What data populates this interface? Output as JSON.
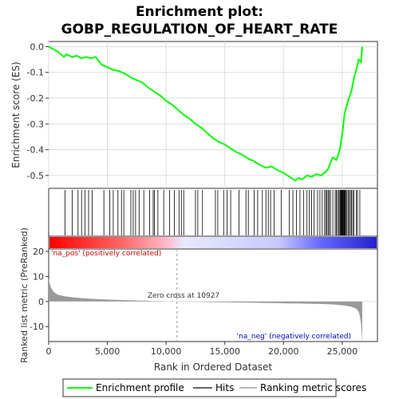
{
  "chart_data": {
    "type": "line",
    "title_line1": "Enrichment plot:",
    "title_line2": "GOBP_REGULATION_OF_HEART_RATE",
    "es_ylabel": "Enrichment score (ES)",
    "rank_ylabel": "Ranked list metric (PreRanked)",
    "xlabel": "Rank in Ordered Dataset",
    "xlim": [
      0,
      28000
    ],
    "es_ylim": [
      -0.55,
      0.02
    ],
    "rank_ylim": [
      -16,
      21
    ],
    "x_ticks": [
      0,
      5000,
      10000,
      15000,
      20000,
      25000
    ],
    "x_tick_labels": [
      "0",
      "5,000",
      "10,000",
      "15,000",
      "20,000",
      "25,000"
    ],
    "es_ticks": [
      0.0,
      -0.1,
      -0.2,
      -0.3,
      -0.4,
      -0.5
    ],
    "es_tick_labels": [
      "0.0",
      "-0.1",
      "-0.2",
      "-0.3",
      "-0.4",
      "-0.5"
    ],
    "rank_ticks": [
      20,
      10,
      0,
      -10
    ],
    "rank_tick_labels": [
      "20",
      "10",
      "0",
      "-10"
    ],
    "zero_cross_rank": 10927,
    "zero_cross_label": "Zero cross at 10927",
    "pos_label": "'na_pos' (positively correlated)",
    "neg_label": "'na_neg' (negatively correlated)",
    "dataset_size": 26700,
    "es_curve": [
      [
        0,
        0.0
      ],
      [
        800,
        -0.02
      ],
      [
        1300,
        -0.04
      ],
      [
        1500,
        -0.03
      ],
      [
        2000,
        -0.04
      ],
      [
        2400,
        -0.035
      ],
      [
        2800,
        -0.045
      ],
      [
        3200,
        -0.04
      ],
      [
        3600,
        -0.045
      ],
      [
        4000,
        -0.04
      ],
      [
        4500,
        -0.07
      ],
      [
        5000,
        -0.08
      ],
      [
        5500,
        -0.09
      ],
      [
        6000,
        -0.095
      ],
      [
        6500,
        -0.105
      ],
      [
        7000,
        -0.12
      ],
      [
        7500,
        -0.13
      ],
      [
        8000,
        -0.14
      ],
      [
        8500,
        -0.16
      ],
      [
        9000,
        -0.175
      ],
      [
        9500,
        -0.19
      ],
      [
        10000,
        -0.21
      ],
      [
        10500,
        -0.225
      ],
      [
        11000,
        -0.245
      ],
      [
        11500,
        -0.265
      ],
      [
        12000,
        -0.28
      ],
      [
        12500,
        -0.3
      ],
      [
        13000,
        -0.315
      ],
      [
        13500,
        -0.335
      ],
      [
        14000,
        -0.355
      ],
      [
        14500,
        -0.37
      ],
      [
        15000,
        -0.38
      ],
      [
        15500,
        -0.395
      ],
      [
        16000,
        -0.41
      ],
      [
        16500,
        -0.42
      ],
      [
        17000,
        -0.435
      ],
      [
        17500,
        -0.445
      ],
      [
        18000,
        -0.46
      ],
      [
        18500,
        -0.47
      ],
      [
        19000,
        -0.465
      ],
      [
        19500,
        -0.48
      ],
      [
        20000,
        -0.49
      ],
      [
        20500,
        -0.505
      ],
      [
        21000,
        -0.52
      ],
      [
        21300,
        -0.51
      ],
      [
        21600,
        -0.515
      ],
      [
        22000,
        -0.5
      ],
      [
        22400,
        -0.505
      ],
      [
        22800,
        -0.495
      ],
      [
        23200,
        -0.5
      ],
      [
        23500,
        -0.49
      ],
      [
        23800,
        -0.475
      ],
      [
        24000,
        -0.45
      ],
      [
        24200,
        -0.43
      ],
      [
        24500,
        -0.44
      ],
      [
        24800,
        -0.4
      ],
      [
        25000,
        -0.34
      ],
      [
        25200,
        -0.26
      ],
      [
        25500,
        -0.21
      ],
      [
        25800,
        -0.17
      ],
      [
        26000,
        -0.12
      ],
      [
        26200,
        -0.09
      ],
      [
        26400,
        -0.05
      ],
      [
        26600,
        -0.06
      ],
      [
        26700,
        0.0
      ]
    ],
    "hits": [
      1400,
      2000,
      2500,
      2800,
      3100,
      3400,
      3700,
      4700,
      5200,
      5500,
      5900,
      6200,
      6400,
      7000,
      7200,
      7400,
      7700,
      8100,
      8600,
      8900,
      9000,
      9300,
      9800,
      10300,
      10700,
      11100,
      11300,
      11500,
      12500,
      12700,
      13100,
      14200,
      14400,
      14900,
      15200,
      15500,
      16200,
      16800,
      17000,
      17500,
      17800,
      18200,
      18500,
      18700,
      18900,
      19200,
      19800,
      20500,
      20800,
      21100,
      21400,
      21700,
      22000,
      22200,
      22400,
      22600,
      22900,
      23100,
      23300,
      23500,
      23600,
      23700,
      23800,
      23900,
      24000,
      24200,
      24400,
      24500,
      24600,
      24700,
      24800,
      24850,
      24900,
      24950,
      25000,
      25050,
      25100,
      25150,
      25200,
      25250,
      25300,
      25400,
      25500,
      25600,
      25700,
      25800,
      25900,
      26000,
      26200,
      26300,
      26500
    ],
    "legend": {
      "enrichment": "Enrichment profile",
      "hits": "Hits",
      "metric": "Ranking metric scores"
    },
    "colors": {
      "es_line": "#00ff00",
      "hits": "#000000",
      "metric_fill": "#999999",
      "pos_label": "#cc0000",
      "neg_label": "#0000cc",
      "grid": "#dddddd"
    }
  }
}
